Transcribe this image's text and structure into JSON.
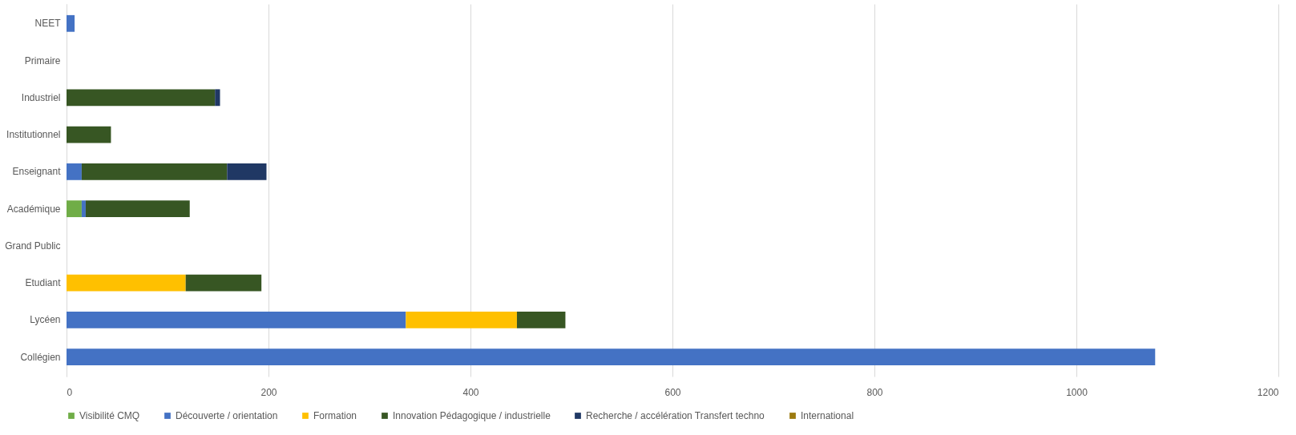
{
  "chart_data": {
    "type": "bar",
    "orientation": "horizontal",
    "stacked": true,
    "categories": [
      "NEET",
      "Primaire",
      "Industriel",
      "Institutionnel",
      "Enseignant",
      "Académique",
      "Grand Public",
      "Etudiant",
      "Lycéen",
      "Collégien"
    ],
    "series": [
      {
        "name": "Visibilité CMQ",
        "color": "#70ad47",
        "values": [
          null,
          null,
          null,
          null,
          null,
          15,
          null,
          null,
          null,
          null
        ]
      },
      {
        "name": "Découverte / orientation",
        "color": "#4472c4",
        "values": [
          8,
          null,
          null,
          null,
          15,
          4,
          null,
          null,
          336,
          1078
        ]
      },
      {
        "name": "Formation",
        "color": "#ffc000",
        "values": [
          null,
          null,
          null,
          null,
          null,
          null,
          null,
          118,
          110,
          null
        ]
      },
      {
        "name": "Innovation Pédagogique / industrielle",
        "color": "#375623",
        "values": [
          null,
          null,
          147,
          44,
          144,
          103,
          null,
          75,
          48,
          null
        ]
      },
      {
        "name": "Recherche / accélération Transfert techno",
        "color": "#203864",
        "values": [
          null,
          null,
          5,
          null,
          39,
          null,
          null,
          null,
          null,
          null
        ]
      },
      {
        "name": "International",
        "color": "#9c7a0e",
        "values": [
          null,
          null,
          null,
          null,
          null,
          null,
          null,
          null,
          null,
          null
        ]
      }
    ],
    "xlim": [
      0,
      1200
    ],
    "xticks": [
      0,
      200,
      400,
      600,
      800,
      1000,
      1200
    ],
    "grid": "x",
    "legend": "bottom"
  }
}
